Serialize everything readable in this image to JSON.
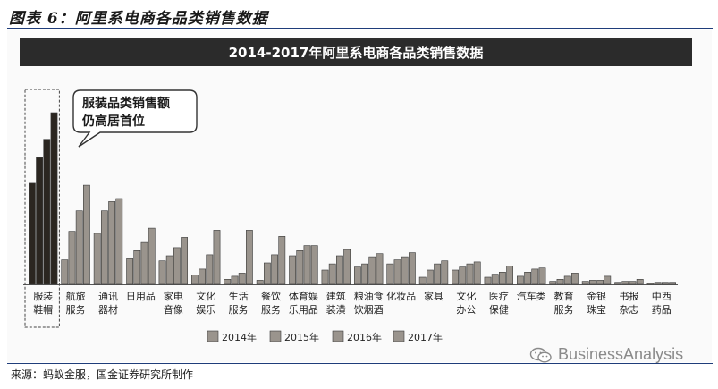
{
  "figure_title": "图表 6：阿里系电商各品类销售数据",
  "source": "来源：蚂蚁金服，国金证券研究所制作",
  "watermark": "BusinessAnalysis",
  "colors": {
    "highlight_bar": "#2b2620",
    "normal_bar": "#9a948d",
    "bar_stroke": "#3a3a3a",
    "title_bar_bg": "#2b2b2b"
  },
  "chart_data": {
    "type": "bar",
    "title": "2014-2017年阿里系电商各品类销售数据",
    "annotation": [
      "服装品类销售额",
      "仍高居首位"
    ],
    "legend_position": "bottom",
    "y_axis_shown": false,
    "categories": [
      [
        "服装",
        "鞋帽"
      ],
      [
        "航旅",
        "服务"
      ],
      [
        "通讯",
        "器材"
      ],
      [
        "日用品"
      ],
      [
        "家电",
        "音像"
      ],
      [
        "文化",
        "娱乐"
      ],
      [
        "生活",
        "服务"
      ],
      [
        "餐饮",
        "服务"
      ],
      [
        "体育娱",
        "乐用品"
      ],
      [
        "建筑",
        "装潢"
      ],
      [
        "粮油食",
        "饮烟酒"
      ],
      [
        "化妆品"
      ],
      [
        "家具"
      ],
      [
        "文化",
        "办公"
      ],
      [
        "医疗",
        "保健"
      ],
      [
        "汽车类"
      ],
      [
        "教育",
        "服务"
      ],
      [
        "金银",
        "珠宝"
      ],
      [
        "书报",
        "杂志"
      ],
      [
        "中西",
        "药品"
      ]
    ],
    "series": [
      {
        "name": "2014年",
        "values": [
          99,
          24,
          50,
          25,
          23,
          9,
          5,
          4,
          28,
          14,
          17,
          20,
          7,
          14,
          7,
          8,
          3,
          3,
          2,
          1
        ]
      },
      {
        "name": "2015年",
        "values": [
          124,
          52,
          72,
          33,
          28,
          15,
          8,
          21,
          33,
          20,
          20,
          24,
          14,
          17,
          10,
          12,
          5,
          4,
          3,
          2
        ]
      },
      {
        "name": "2016年",
        "values": [
          142,
          72,
          81,
          41,
          36,
          29,
          11,
          29,
          38,
          28,
          27,
          27,
          20,
          20,
          12,
          15,
          8,
          4,
          3,
          2
        ]
      },
      {
        "name": "2017年",
        "values": [
          168,
          97,
          84,
          55,
          46,
          53,
          53,
          47,
          38,
          34,
          30,
          31,
          23,
          22,
          18,
          16,
          11,
          8,
          5,
          2
        ]
      }
    ],
    "ylim": [
      0,
      175
    ]
  }
}
